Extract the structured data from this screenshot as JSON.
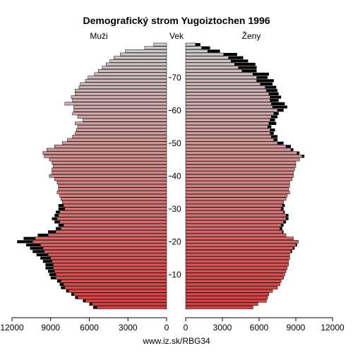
{
  "chart_data": {
    "type": "bar",
    "title": "Demografický strom Yugoiztochen 1996",
    "left_label": "Muži",
    "center_label": "Vek",
    "right_label": "Ženy",
    "footer": "www.iz.sk/RBG34",
    "xlim": [
      0,
      12000
    ],
    "x_ticks": [
      "12000",
      "9000",
      "6000",
      "3000",
      "0",
      "0",
      "3000",
      "6000",
      "9000",
      "12000"
    ],
    "x_tick_values": [
      12000,
      9000,
      6000,
      3000,
      0,
      0,
      3000,
      6000,
      9000,
      12000
    ],
    "age_ticks": [
      10,
      20,
      30,
      40,
      50,
      60,
      70
    ],
    "ages": [
      0,
      1,
      2,
      3,
      4,
      5,
      6,
      7,
      8,
      9,
      10,
      11,
      12,
      13,
      14,
      15,
      16,
      17,
      18,
      19,
      20,
      21,
      22,
      23,
      24,
      25,
      26,
      27,
      28,
      29,
      30,
      31,
      32,
      33,
      34,
      35,
      36,
      37,
      38,
      39,
      40,
      41,
      42,
      43,
      44,
      45,
      46,
      47,
      48,
      49,
      50,
      51,
      52,
      53,
      54,
      55,
      56,
      57,
      58,
      59,
      60,
      61,
      62,
      63,
      64,
      65,
      66,
      67,
      68,
      69,
      70,
      71,
      72,
      73,
      74,
      75,
      76,
      77,
      78,
      79,
      80
    ],
    "series": [
      {
        "name": "Muži",
        "values": [
          5400,
          5800,
          6300,
          6900,
          7200,
          7600,
          7900,
          8000,
          8200,
          8600,
          8600,
          8700,
          8800,
          8800,
          8900,
          9000,
          9200,
          9500,
          9600,
          9800,
          10400,
          10200,
          9200,
          8600,
          8200,
          8000,
          8300,
          8500,
          8400,
          8300,
          7900,
          8000,
          8100,
          8200,
          8300,
          8500,
          8400,
          8400,
          8500,
          8700,
          9100,
          8900,
          8900,
          8800,
          8900,
          9100,
          9500,
          9600,
          9300,
          8700,
          8100,
          7700,
          7300,
          7100,
          7000,
          6900,
          7100,
          6500,
          6900,
          7300,
          7200,
          7200,
          7900,
          7300,
          7400,
          7100,
          7100,
          6800,
          6700,
          6300,
          6100,
          5600,
          5300,
          5000,
          4700,
          4400,
          4100,
          3600,
          3200,
          1700,
          1000
        ],
        "extra": [
          300,
          200,
          200,
          200,
          200,
          200,
          300,
          300,
          300,
          400,
          500,
          500,
          600,
          600,
          700,
          800,
          900,
          900,
          1000,
          1100,
          1200,
          900,
          800,
          600,
          400,
          400,
          400,
          400,
          300,
          300,
          500,
          400,
          0,
          0,
          0,
          0,
          0,
          0,
          0,
          0,
          0,
          0,
          0,
          0,
          0,
          0,
          0,
          0,
          0,
          0,
          0,
          0,
          0,
          0,
          0,
          0,
          0,
          0,
          0,
          0,
          0,
          0,
          0,
          0,
          0,
          0,
          0,
          0,
          0,
          0,
          0,
          0,
          0,
          0,
          0,
          0,
          0,
          0,
          0,
          0,
          0
        ]
      },
      {
        "name": "Ženy",
        "values": [
          5500,
          5900,
          6600,
          6700,
          6800,
          7100,
          7500,
          7700,
          7800,
          8000,
          8100,
          8200,
          8300,
          8400,
          8400,
          8500,
          8500,
          8600,
          8800,
          9000,
          9200,
          8800,
          8200,
          7900,
          7700,
          7800,
          8000,
          8200,
          8200,
          8000,
          7800,
          7900,
          8000,
          8200,
          8300,
          8500,
          8400,
          8500,
          8500,
          8700,
          8800,
          8800,
          8900,
          9000,
          9000,
          9300,
          9500,
          9100,
          8600,
          8200,
          7500,
          7200,
          7000,
          6900,
          6900,
          6700,
          6800,
          6900,
          7000,
          7200,
          7500,
          7100,
          7000,
          6900,
          6900,
          6800,
          6600,
          6500,
          6100,
          5800,
          5800,
          5500,
          4600,
          4300,
          4000,
          3700,
          3500,
          3100,
          1800,
          1300,
          800
        ],
        "extra": [
          0,
          0,
          0,
          0,
          0,
          0,
          0,
          0,
          0,
          0,
          0,
          0,
          0,
          0,
          0,
          0,
          0,
          100,
          100,
          100,
          0,
          0,
          0,
          100,
          200,
          200,
          200,
          200,
          200,
          100,
          200,
          200,
          0,
          0,
          0,
          0,
          0,
          0,
          0,
          0,
          0,
          0,
          0,
          0,
          0,
          0,
          200,
          200,
          200,
          400,
          500,
          300,
          500,
          300,
          400,
          300,
          600,
          400,
          500,
          400,
          500,
          1200,
          1100,
          700,
          900,
          800,
          900,
          900,
          1000,
          1400,
          900,
          1300,
          1200,
          1500,
          1700,
          1400,
          1200,
          1100,
          1000,
          700,
          400
        ]
      }
    ]
  }
}
